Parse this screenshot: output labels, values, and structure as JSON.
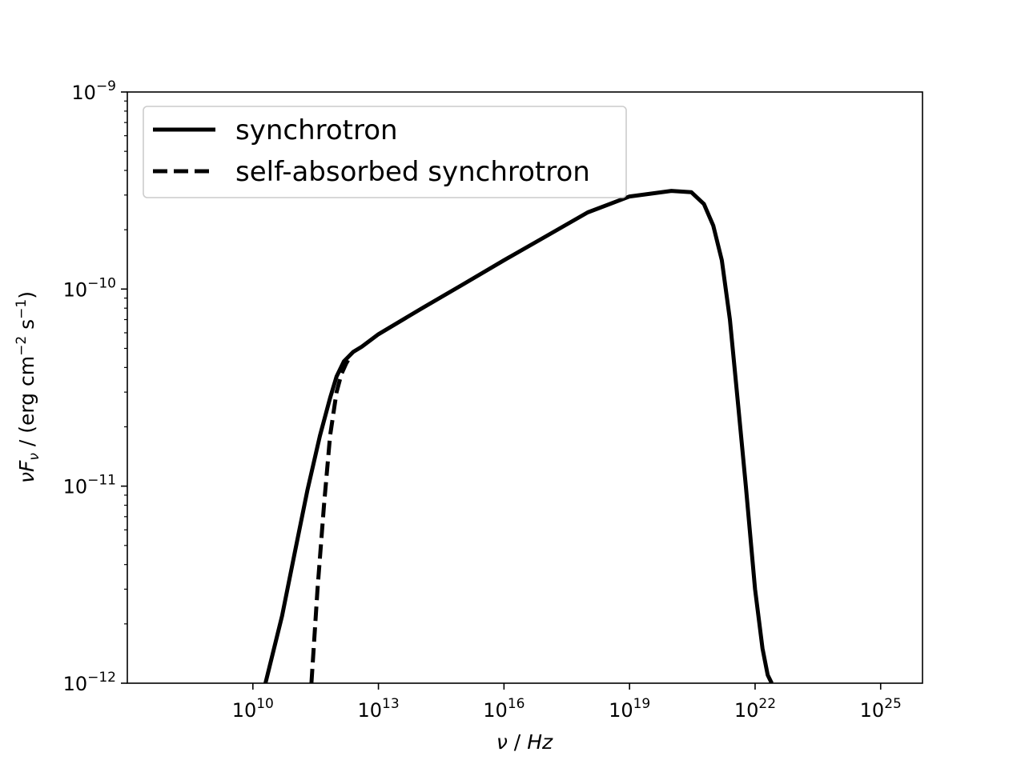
{
  "chart_data": {
    "type": "line",
    "xscale": "log",
    "yscale": "log",
    "xlim": [
      10000000.0,
      1e+26
    ],
    "ylim": [
      1e-12,
      1e-09
    ],
    "xticks": [
      {
        "value": 10000000000.0,
        "base": "10",
        "exp": "10"
      },
      {
        "value": 10000000000000.0,
        "base": "10",
        "exp": "13"
      },
      {
        "value": 1e+16,
        "base": "10",
        "exp": "16"
      },
      {
        "value": 1e+19,
        "base": "10",
        "exp": "19"
      },
      {
        "value": 1e+22,
        "base": "10",
        "exp": "22"
      },
      {
        "value": 1e+25,
        "base": "10",
        "exp": "25"
      }
    ],
    "yticks": [
      {
        "value": 1e-12,
        "base": "10",
        "exp": "−12"
      },
      {
        "value": 1e-11,
        "base": "10",
        "exp": "−11"
      },
      {
        "value": 1e-10,
        "base": "10",
        "exp": "−10"
      },
      {
        "value": 1e-09,
        "base": "10",
        "exp": "−9"
      }
    ],
    "xlabel": {
      "nu": "ν",
      "sep": " / ",
      "unit": "Hz"
    },
    "ylabel": {
      "nu": "ν",
      "F": "F",
      "sub": "ν",
      "open": " / (erg cm",
      "exp1": "−2",
      "s": " s",
      "exp2": "−1",
      "close": ")"
    },
    "legend_position": "upper-left",
    "grid": false,
    "series": [
      {
        "name": "synchrotron",
        "style": "solid",
        "color": "#000000",
        "x": [
          20000000000.0,
          50000000000.0,
          100000000000.0,
          200000000000.0,
          400000000000.0,
          700000000000.0,
          1000000000000.0,
          1500000000000.0,
          2500000000000.0,
          4000000000000.0,
          10000000000000.0,
          100000000000000.0,
          1000000000000000.0,
          1e+16,
          1e+17,
          1e+18,
          1e+19,
          1e+20,
          3e+20,
          6e+20,
          1e+21,
          1.6e+21,
          2.5e+21,
          4e+21,
          6e+21,
          1e+22,
          1.5e+22,
          2e+22,
          2.5e+22
        ],
        "y": [
          1e-12,
          2.2e-12,
          4.6e-12,
          9.5e-12,
          1.8e-11,
          2.8e-11,
          3.6e-11,
          4.3e-11,
          4.8e-11,
          5.1e-11,
          5.9e-11,
          7.9e-11,
          1.05e-10,
          1.4e-10,
          1.85e-10,
          2.45e-10,
          2.95e-10,
          3.15e-10,
          3.1e-10,
          2.7e-10,
          2.1e-10,
          1.4e-10,
          7e-11,
          2.5e-11,
          1e-11,
          3e-12,
          1.5e-12,
          1.1e-12,
          1e-12
        ]
      },
      {
        "name": "self-absorbed synchrotron",
        "style": "dashed",
        "color": "#000000",
        "x": [
          250000000000.0,
          350000000000.0,
          500000000000.0,
          700000000000.0,
          1000000000000.0,
          1300000000000.0,
          1700000000000.0,
          2200000000000.0
        ],
        "y": [
          1e-12,
          3e-12,
          8e-12,
          1.8e-11,
          3e-11,
          3.7e-11,
          4.2e-11,
          4.6e-11
        ]
      }
    ]
  }
}
